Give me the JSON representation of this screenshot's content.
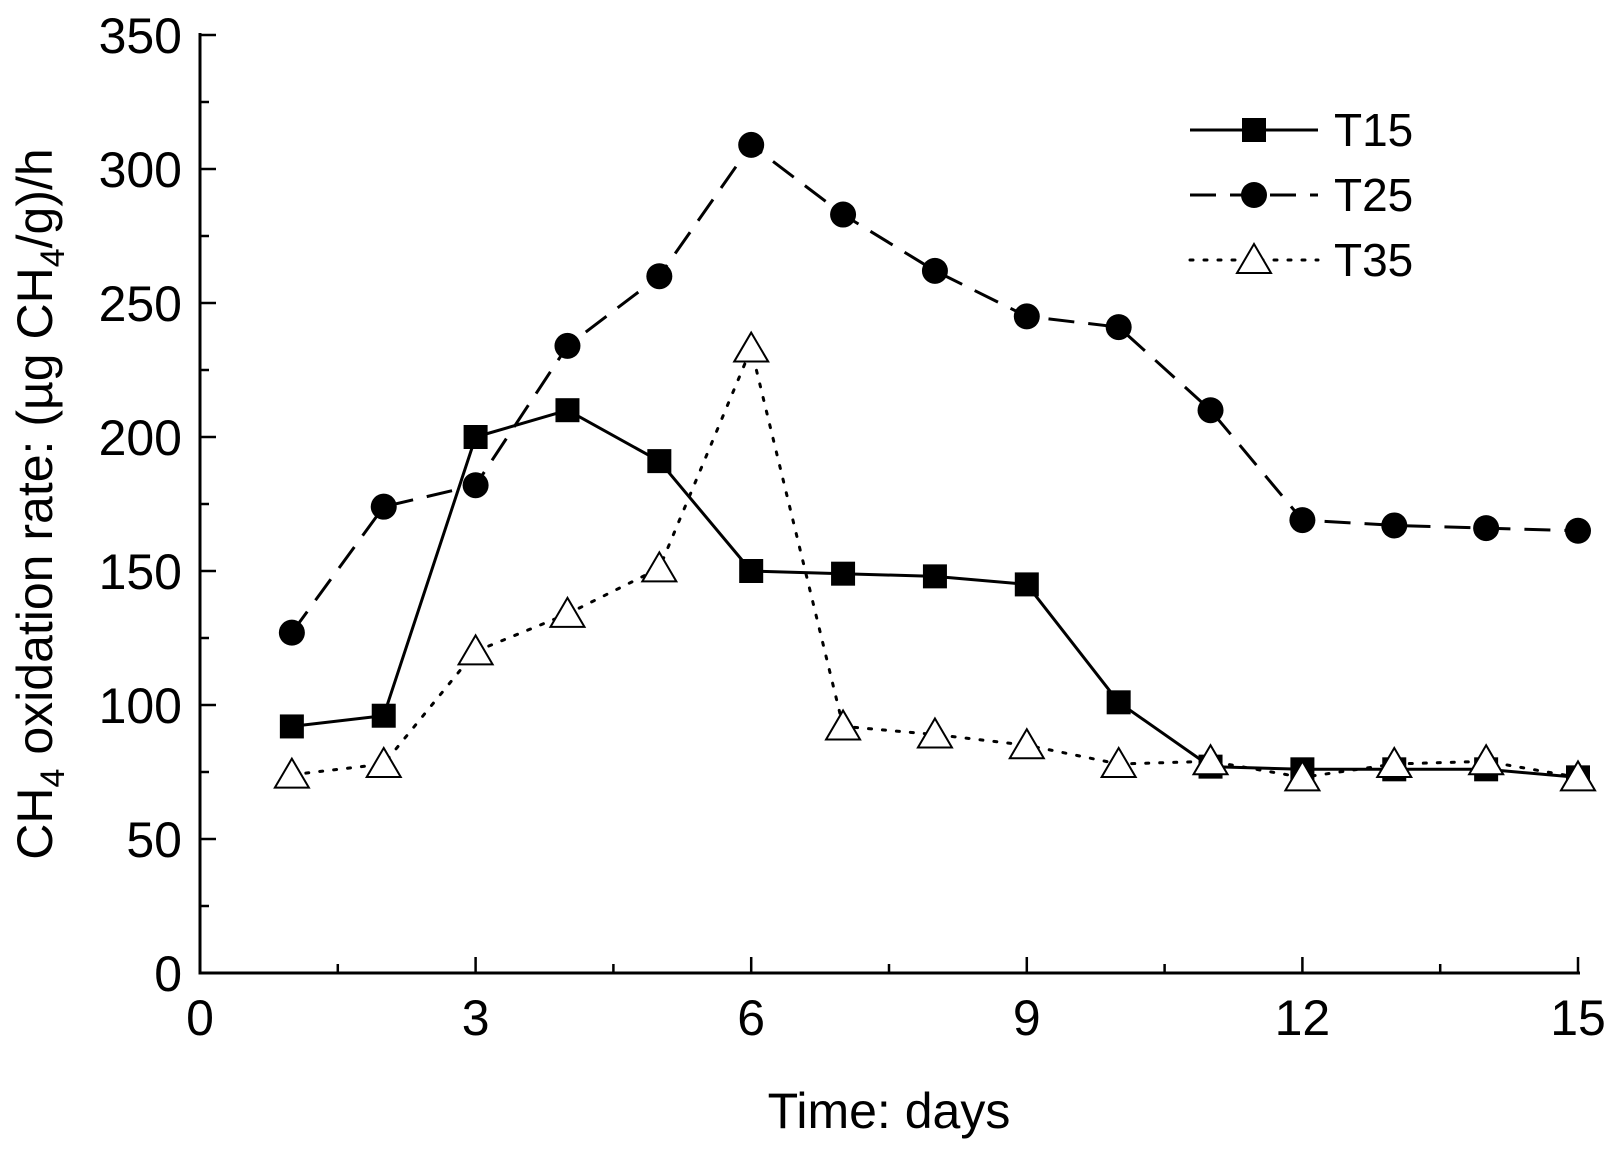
{
  "chart_data": {
    "type": "line",
    "xlabel": "Time: days",
    "ylabel": {
      "base": "CH",
      "sub1": "4",
      "mid": " oxidation rate: (µg CH",
      "sub2": "4",
      "end": "/g)/h"
    },
    "xlim": [
      0,
      15
    ],
    "ylim": [
      0,
      350
    ],
    "x_ticks": [
      0,
      3,
      6,
      9,
      12,
      15
    ],
    "y_ticks": [
      0,
      50,
      100,
      150,
      200,
      250,
      300,
      350
    ],
    "grid": false,
    "legend_position": "top-right",
    "series": [
      {
        "name": "T15",
        "line_style": "solid",
        "marker": "filled-square",
        "x": [
          1,
          2,
          3,
          4,
          5,
          6,
          7,
          8,
          9,
          10,
          11,
          12,
          13,
          14,
          15
        ],
        "values": [
          92,
          96,
          200,
          210,
          191,
          150,
          149,
          148,
          145,
          101,
          77,
          76,
          76,
          76,
          73
        ]
      },
      {
        "name": "T25",
        "line_style": "dashed",
        "marker": "filled-circle",
        "x": [
          1,
          2,
          3,
          4,
          5,
          6,
          7,
          8,
          9,
          10,
          11,
          12,
          13,
          14,
          15
        ],
        "values": [
          127,
          174,
          182,
          234,
          260,
          309,
          283,
          262,
          245,
          241,
          210,
          169,
          167,
          166,
          165
        ]
      },
      {
        "name": "T35",
        "line_style": "dotted",
        "marker": "open-triangle",
        "x": [
          1,
          2,
          3,
          4,
          5,
          6,
          7,
          8,
          9,
          10,
          11,
          12,
          13,
          14,
          15
        ],
        "values": [
          74,
          78,
          120,
          134,
          151,
          233,
          92,
          89,
          85,
          78,
          79,
          73,
          78,
          79,
          73
        ]
      }
    ]
  }
}
